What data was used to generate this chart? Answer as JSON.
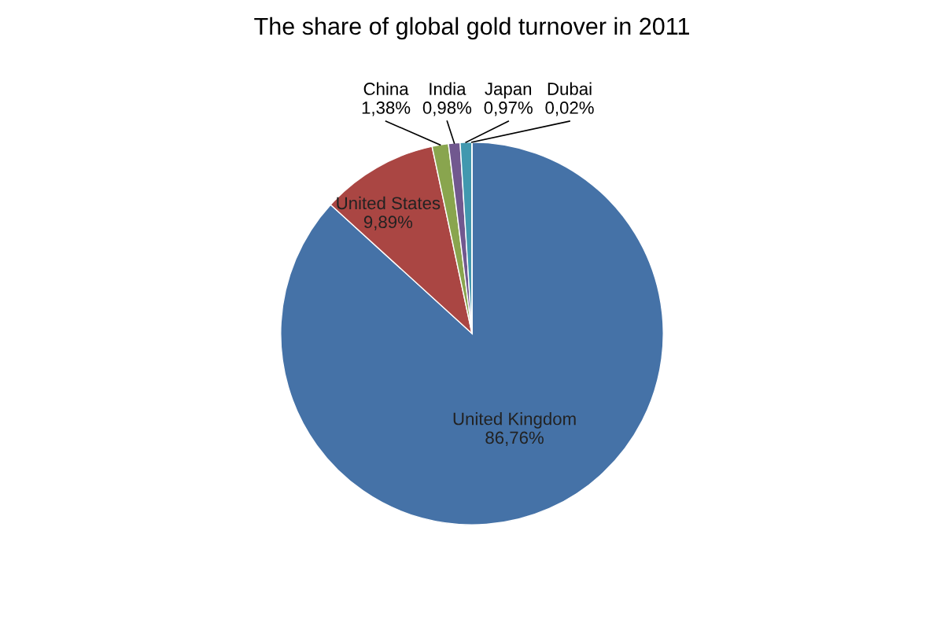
{
  "chart_data": {
    "type": "pie",
    "title": "The share of global gold turnover in 2011",
    "categories": [
      "United Kingdom",
      "United States",
      "China",
      "India",
      "Japan",
      "Dubai"
    ],
    "values": [
      86.76,
      9.89,
      1.38,
      0.98,
      0.97,
      0.02
    ],
    "value_labels": [
      "86,76%",
      "9,89%",
      "1,38%",
      "0,98%",
      "0,97%",
      "0,02%"
    ],
    "colors": [
      "#4572a7",
      "#aa4643",
      "#89a54e",
      "#71588f",
      "#4198af",
      "#db843d"
    ],
    "legend": false
  }
}
